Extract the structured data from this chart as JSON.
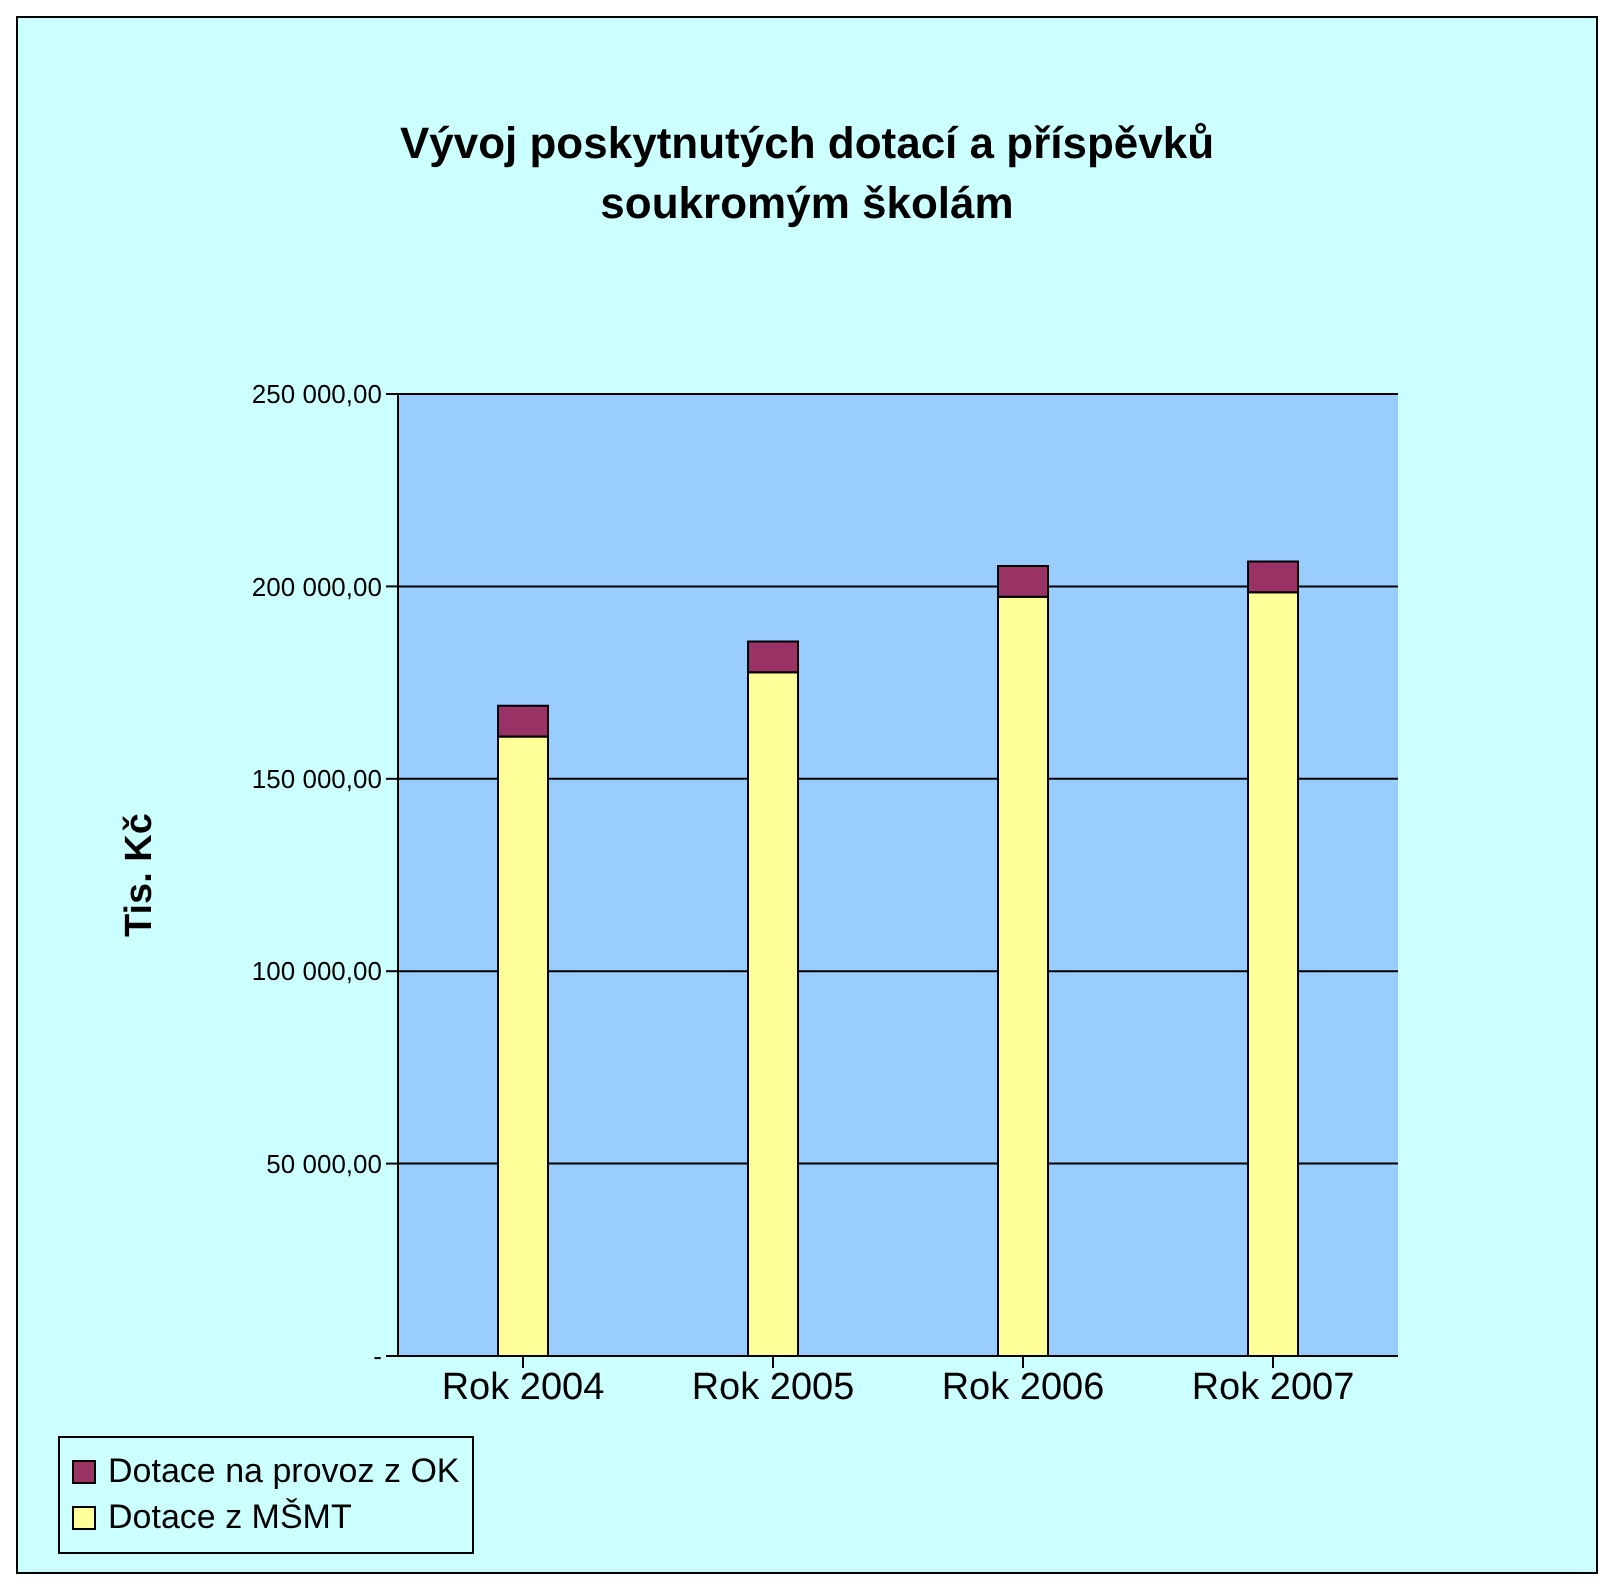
{
  "chart_data": {
    "type": "bar",
    "title": "Vývoj poskytnutých dotací a příspěvků soukromým školám",
    "ylabel": "Tis. Kč",
    "categories": [
      "Rok 2004",
      "Rok 2005",
      "Rok 2006",
      "Rok 2007"
    ],
    "stacked": true,
    "series": [
      {
        "name": "Dotace z MŠMT",
        "color": "#ffff99",
        "values": [
          161000,
          177700,
          197300,
          198500
        ]
      },
      {
        "name": "Dotace na provoz z OK",
        "color": "#993366",
        "values": [
          8000,
          8000,
          8000,
          8000
        ]
      }
    ],
    "ylim": [
      0,
      250000
    ],
    "yticks": [
      {
        "value": 0,
        "label": "-"
      },
      {
        "value": 50000,
        "label": "50 000,00"
      },
      {
        "value": 100000,
        "label": "100 000,00"
      },
      {
        "value": 150000,
        "label": "150 000,00"
      },
      {
        "value": 200000,
        "label": "200 000,00"
      },
      {
        "value": 250000,
        "label": "250 000,00"
      }
    ],
    "grid": "y",
    "legend": "bottom left"
  }
}
